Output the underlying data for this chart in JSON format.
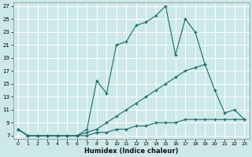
{
  "xlabel": "Humidex (Indice chaleur)",
  "bg_color": "#cce8e8",
  "grid_color": "#ffffff",
  "line_color": "#1a6b6b",
  "xlim": [
    -0.5,
    23.5
  ],
  "ylim": [
    6.5,
    27.5
  ],
  "yticks": [
    7,
    9,
    11,
    13,
    15,
    17,
    19,
    21,
    23,
    25,
    27
  ],
  "xticks": [
    0,
    1,
    2,
    3,
    4,
    5,
    6,
    7,
    8,
    9,
    10,
    11,
    12,
    13,
    14,
    15,
    16,
    17,
    18,
    19,
    20,
    21,
    22,
    23
  ],
  "line1_x": [
    0,
    1,
    2,
    3,
    4,
    5,
    6,
    7,
    8,
    9,
    10,
    11,
    12,
    13,
    14,
    15,
    16,
    17,
    18,
    19
  ],
  "line1_y": [
    8.0,
    7.0,
    7.0,
    7.0,
    7.0,
    7.0,
    7.0,
    8.0,
    15.5,
    13.5,
    21.0,
    21.5,
    24.0,
    24.5,
    25.5,
    27.0,
    19.5,
    25.0,
    23.0,
    18.0
  ],
  "line2_x": [
    0,
    1,
    2,
    3,
    4,
    5,
    6,
    7,
    8,
    9,
    10,
    11,
    12,
    13,
    14,
    15,
    16,
    17,
    18,
    19,
    20,
    21,
    22,
    23
  ],
  "line2_y": [
    8.0,
    7.0,
    7.0,
    7.0,
    7.0,
    7.0,
    7.0,
    7.5,
    8.0,
    9.0,
    10.0,
    11.0,
    12.0,
    13.0,
    14.0,
    15.0,
    16.0,
    17.0,
    17.5,
    18.0,
    14.0,
    10.5,
    11.0,
    9.5
  ],
  "line3_x": [
    0,
    1,
    2,
    3,
    4,
    5,
    6,
    7,
    8,
    9,
    10,
    11,
    12,
    13,
    14,
    15,
    16,
    17,
    18,
    19,
    20,
    21,
    22,
    23
  ],
  "line3_y": [
    8.0,
    7.0,
    7.0,
    7.0,
    7.0,
    7.0,
    7.0,
    7.0,
    7.5,
    7.5,
    8.0,
    8.0,
    8.5,
    8.5,
    9.0,
    9.0,
    9.0,
    9.5,
    9.5,
    9.5,
    9.5,
    9.5,
    9.5,
    9.5
  ]
}
